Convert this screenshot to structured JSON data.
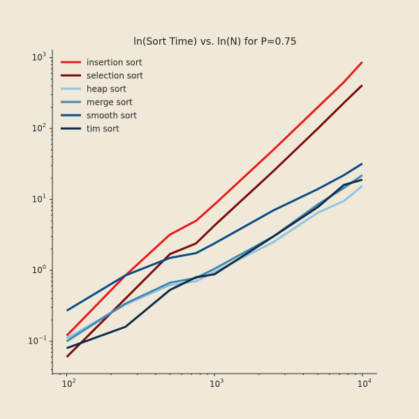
{
  "chart_data": {
    "type": "line",
    "title": "ln(Sort Time) vs. ln(N) for P=0.75",
    "xlabel": "",
    "ylabel": "",
    "x_scale": "log",
    "y_scale": "log",
    "xlim": [
      80,
      12600
    ],
    "ylim": [
      0.035,
      1300
    ],
    "grid": false,
    "legend_position": "top-left",
    "x_ticks": [
      {
        "value": 100,
        "base": "10",
        "exp": "2"
      },
      {
        "value": 1000,
        "base": "10",
        "exp": "3"
      },
      {
        "value": 10000,
        "base": "10",
        "exp": "4"
      }
    ],
    "y_ticks": [
      {
        "value": 0.1,
        "base": "10",
        "exp": "−1"
      },
      {
        "value": 1,
        "base": "10",
        "exp": "0"
      },
      {
        "value": 10,
        "base": "10",
        "exp": "1"
      },
      {
        "value": 100,
        "base": "10",
        "exp": "2"
      },
      {
        "value": 1000,
        "base": "10",
        "exp": "3"
      }
    ],
    "x": [
      100,
      250,
      500,
      750,
      1000,
      2500,
      5000,
      7500,
      10000
    ],
    "series": [
      {
        "name": "insertion sort",
        "color": "#e8191c",
        "values": [
          0.12,
          0.85,
          3.2,
          5.0,
          8.5,
          50,
          200,
          450,
          870
        ]
      },
      {
        "name": "selection sort",
        "color": "#7a0a0a",
        "values": [
          0.06,
          0.4,
          1.7,
          2.4,
          4.3,
          25,
          100,
          230,
          410
        ]
      },
      {
        "name": "heap sort",
        "color": "#92c3de",
        "values": [
          0.11,
          0.33,
          0.62,
          0.7,
          0.95,
          2.5,
          6.5,
          9.5,
          15.5
        ]
      },
      {
        "name": "merge sort",
        "color": "#3f89b3",
        "values": [
          0.1,
          0.34,
          0.67,
          0.78,
          1.05,
          3.0,
          8.5,
          14.5,
          22
        ]
      },
      {
        "name": "smooth sort",
        "color": "#0a4c85",
        "values": [
          0.27,
          0.85,
          1.5,
          1.75,
          2.4,
          7.0,
          14,
          22,
          32
        ]
      },
      {
        "name": "tim sort",
        "color": "#0c2c4a",
        "values": [
          0.08,
          0.16,
          0.53,
          0.8,
          0.88,
          3.0,
          7.8,
          16,
          19
        ]
      }
    ]
  }
}
